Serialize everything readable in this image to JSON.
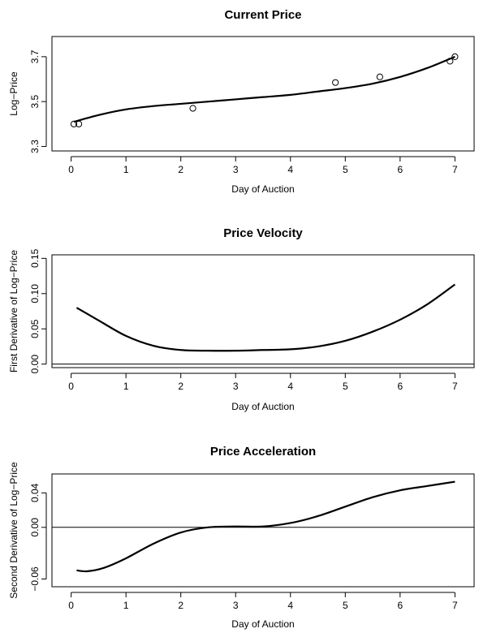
{
  "chart_data": [
    {
      "type": "scatter",
      "title": "Current Price",
      "xlabel": "Day of Auction",
      "ylabel": "Log−Price",
      "xlim": [
        -0.35,
        7.35
      ],
      "ylim": [
        3.28,
        3.79
      ],
      "xticks": [
        "0",
        "1",
        "2",
        "3",
        "4",
        "5",
        "6",
        "7"
      ],
      "yticks": [
        "3.3",
        "3.5",
        "3.7"
      ],
      "yticks_vals": [
        3.3,
        3.5,
        3.7
      ],
      "grid": false,
      "points": {
        "x": [
          0.05,
          0.14,
          2.22,
          4.82,
          5.63,
          6.91,
          7.0
        ],
        "y": [
          3.4,
          3.4,
          3.47,
          3.585,
          3.61,
          3.68,
          3.7
        ]
      },
      "curve": {
        "x": [
          0.05,
          0.5,
          1.0,
          1.5,
          2.0,
          2.5,
          3.0,
          3.5,
          4.0,
          4.5,
          5.0,
          5.5,
          6.0,
          6.5,
          7.0
        ],
        "y": [
          3.41,
          3.44,
          3.465,
          3.48,
          3.49,
          3.5,
          3.51,
          3.52,
          3.53,
          3.545,
          3.56,
          3.58,
          3.61,
          3.65,
          3.7
        ]
      }
    },
    {
      "type": "line",
      "title": "Price Velocity",
      "xlabel": "Day of Auction",
      "ylabel": "First Derivative of Log−Price",
      "xlim": [
        -0.35,
        7.35
      ],
      "ylim": [
        -0.005,
        0.155
      ],
      "xticks": [
        "0",
        "1",
        "2",
        "3",
        "4",
        "5",
        "6",
        "7"
      ],
      "yticks": [
        "0.00",
        "0.05",
        "0.10",
        "0.15"
      ],
      "yticks_vals": [
        0.0,
        0.05,
        0.1,
        0.15
      ],
      "hline": 0,
      "grid": false,
      "series": [
        {
          "x": [
            0.1,
            0.5,
            1.0,
            1.5,
            2.0,
            2.5,
            3.0,
            3.5,
            4.0,
            4.5,
            5.0,
            5.5,
            6.0,
            6.5,
            7.0
          ],
          "values": [
            0.08,
            0.062,
            0.04,
            0.026,
            0.02,
            0.019,
            0.019,
            0.02,
            0.021,
            0.025,
            0.033,
            0.046,
            0.063,
            0.085,
            0.113
          ]
        }
      ]
    },
    {
      "type": "line",
      "title": "Price Acceleration",
      "xlabel": "Day of Auction",
      "ylabel": "Second Derivative of Log−Price",
      "xlim": [
        -0.35,
        7.35
      ],
      "ylim": [
        -0.069,
        0.062
      ],
      "xticks": [
        "0",
        "1",
        "2",
        "3",
        "4",
        "5",
        "6",
        "7"
      ],
      "yticks": [
        "−0.06",
        "0.00",
        "0.04"
      ],
      "yticks_vals": [
        -0.06,
        0.0,
        0.04
      ],
      "hline": 0,
      "grid": false,
      "series": [
        {
          "x": [
            0.1,
            0.3,
            0.6,
            1.0,
            1.5,
            2.0,
            2.5,
            3.0,
            3.5,
            4.0,
            4.5,
            5.0,
            5.5,
            6.0,
            6.5,
            7.0
          ],
          "values": [
            -0.05,
            -0.051,
            -0.047,
            -0.036,
            -0.019,
            -0.006,
            0.0,
            0.001,
            0.001,
            0.005,
            0.013,
            0.024,
            0.035,
            0.043,
            0.048,
            0.053
          ]
        }
      ]
    }
  ]
}
